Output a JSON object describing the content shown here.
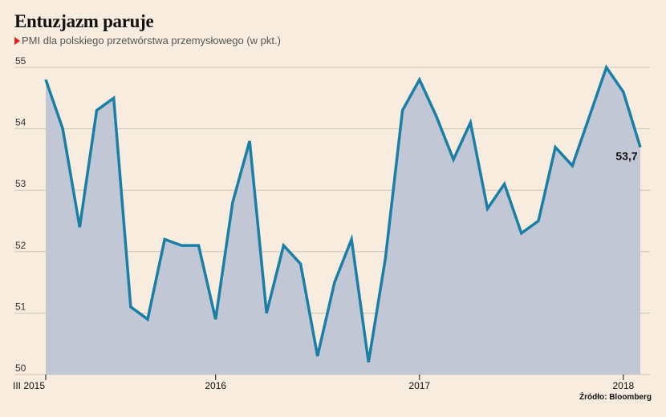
{
  "chart_data": {
    "type": "area",
    "title": "Entuzjazm paruje",
    "subtitle": "PMI dla polskiego przetwórstwa przemysłowego (w pkt.)",
    "source": "Źródło: Bloomberg",
    "ylim": [
      50,
      55
    ],
    "y_ticks": [
      50,
      51,
      52,
      53,
      54,
      55
    ],
    "y_tick_labels": [
      "50",
      "51",
      "52",
      "53",
      "54",
      "55"
    ],
    "grid": "horizontal",
    "x_ticks": [
      {
        "index": 0,
        "label": "III 2015"
      },
      {
        "index": 10,
        "label": "2016"
      },
      {
        "index": 22,
        "label": "2017"
      },
      {
        "index": 34,
        "label": "2018"
      }
    ],
    "series": [
      {
        "values": [
          54.8,
          54.0,
          52.4,
          54.3,
          54.5,
          51.1,
          50.9,
          52.2,
          52.1,
          52.1,
          50.9,
          52.8,
          53.8,
          51.0,
          52.1,
          51.8,
          50.3,
          51.5,
          52.2,
          50.2,
          51.9,
          54.3,
          54.8,
          54.2,
          53.5,
          54.1,
          52.7,
          53.1,
          52.3,
          52.5,
          53.7,
          53.4,
          54.2,
          55.0,
          54.6,
          53.7
        ]
      }
    ],
    "annotation": {
      "index": 35,
      "label": "53,7"
    },
    "colors": {
      "line": "#1a7fa6",
      "area": "#c2c7d6",
      "grid": "#cfc5b7",
      "background": "#f8ecdf"
    }
  }
}
